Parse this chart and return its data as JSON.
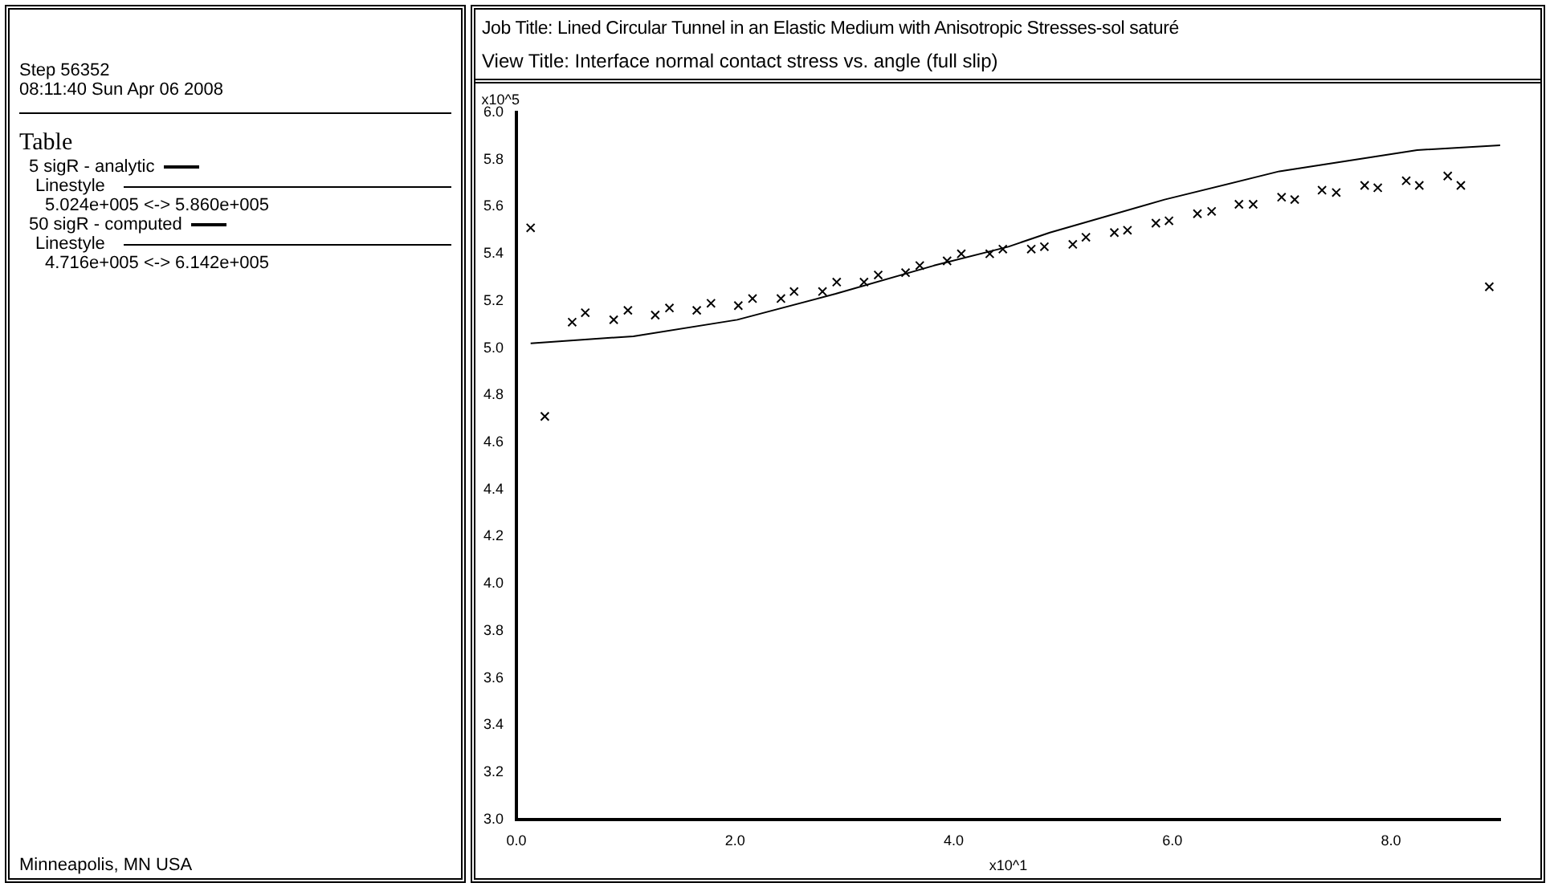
{
  "chart_data": {
    "type": "scatter",
    "title": "Job Title: Lined Circular Tunnel in an Elastic Medium with Anisotropic Stresses-sol saturé",
    "subtitle": "View Title: Interface normal contact stress vs. angle (full slip)",
    "xlabel": "x10^1",
    "ylabel": "x10^5",
    "xlim": [
      0,
      9.0
    ],
    "ylim": [
      3.0,
      6.0
    ],
    "xticks": [
      {
        "value": 0,
        "label": "0.0"
      },
      {
        "value": 2,
        "label": "2.0"
      },
      {
        "value": 4,
        "label": "4.0"
      },
      {
        "value": 6,
        "label": "6.0"
      },
      {
        "value": 8,
        "label": "8.0"
      }
    ],
    "yticks": [
      {
        "value": 3,
        "label": "3.0"
      },
      {
        "value": 3.2,
        "label": "3.2"
      },
      {
        "value": 3.4,
        "label": "3.4"
      },
      {
        "value": 3.6,
        "label": "3.6"
      },
      {
        "value": 3.8,
        "label": "3.8"
      },
      {
        "value": 4,
        "label": "4.0"
      },
      {
        "value": 4.2,
        "label": "4.2"
      },
      {
        "value": 4.4,
        "label": "4.4"
      },
      {
        "value": 4.6,
        "label": "4.6"
      },
      {
        "value": 4.8,
        "label": "4.8"
      },
      {
        "value": 5,
        "label": "5.0"
      },
      {
        "value": 5.2,
        "label": "5.2"
      },
      {
        "value": 5.4,
        "label": "5.4"
      },
      {
        "value": 5.6,
        "label": "5.6"
      },
      {
        "value": 5.8,
        "label": "5.8"
      },
      {
        "value": 6,
        "label": "6.0"
      }
    ],
    "grid": false,
    "legend": "left",
    "series": [
      {
        "name": "5 sigR - analytic",
        "type": "line",
        "marker": "none",
        "color": "#000000",
        "x": [
          0.13,
          1.07,
          2.02,
          2.92,
          3.82,
          4.5,
          4.88,
          5.93,
          6.98,
          8.24,
          9.0
        ],
        "values": [
          5.02,
          5.05,
          5.12,
          5.23,
          5.35,
          5.43,
          5.49,
          5.63,
          5.75,
          5.84,
          5.86
        ]
      },
      {
        "name": "50 sigR - computed",
        "type": "scatter",
        "marker": "cross",
        "color": "#000000",
        "x": [
          0.13,
          0.26,
          0.51,
          0.63,
          0.89,
          1.02,
          1.27,
          1.4,
          1.65,
          1.78,
          2.03,
          2.16,
          2.42,
          2.54,
          2.8,
          2.93,
          3.18,
          3.31,
          3.56,
          3.69,
          3.94,
          4.07,
          4.33,
          4.45,
          4.71,
          4.83,
          5.09,
          5.21,
          5.47,
          5.59,
          5.85,
          5.97,
          6.23,
          6.36,
          6.61,
          6.74,
          7.0,
          7.12,
          7.37,
          7.5,
          7.76,
          7.88,
          8.14,
          8.26,
          8.52,
          8.64,
          8.9
        ],
        "values": [
          5.51,
          4.71,
          5.11,
          5.15,
          5.12,
          5.16,
          5.14,
          5.17,
          5.16,
          5.19,
          5.18,
          5.21,
          5.21,
          5.24,
          5.24,
          5.28,
          5.28,
          5.31,
          5.32,
          5.35,
          5.37,
          5.4,
          5.4,
          5.42,
          5.42,
          5.43,
          5.44,
          5.47,
          5.49,
          5.5,
          5.53,
          5.54,
          5.57,
          5.58,
          5.61,
          5.61,
          5.64,
          5.63,
          5.67,
          5.66,
          5.69,
          5.68,
          5.71,
          5.69,
          5.73,
          5.69,
          5.26
        ]
      }
    ],
    "annotations": [
      "Step 56352",
      "08:11:40 Sun Apr 06 2008",
      "Table",
      "Linestyle",
      "5.024e+005 <-> 5.860e+005",
      "Linestyle",
      "4.716e+005 <-> 6.142e+005",
      "Minneapolis, MN  USA"
    ]
  }
}
